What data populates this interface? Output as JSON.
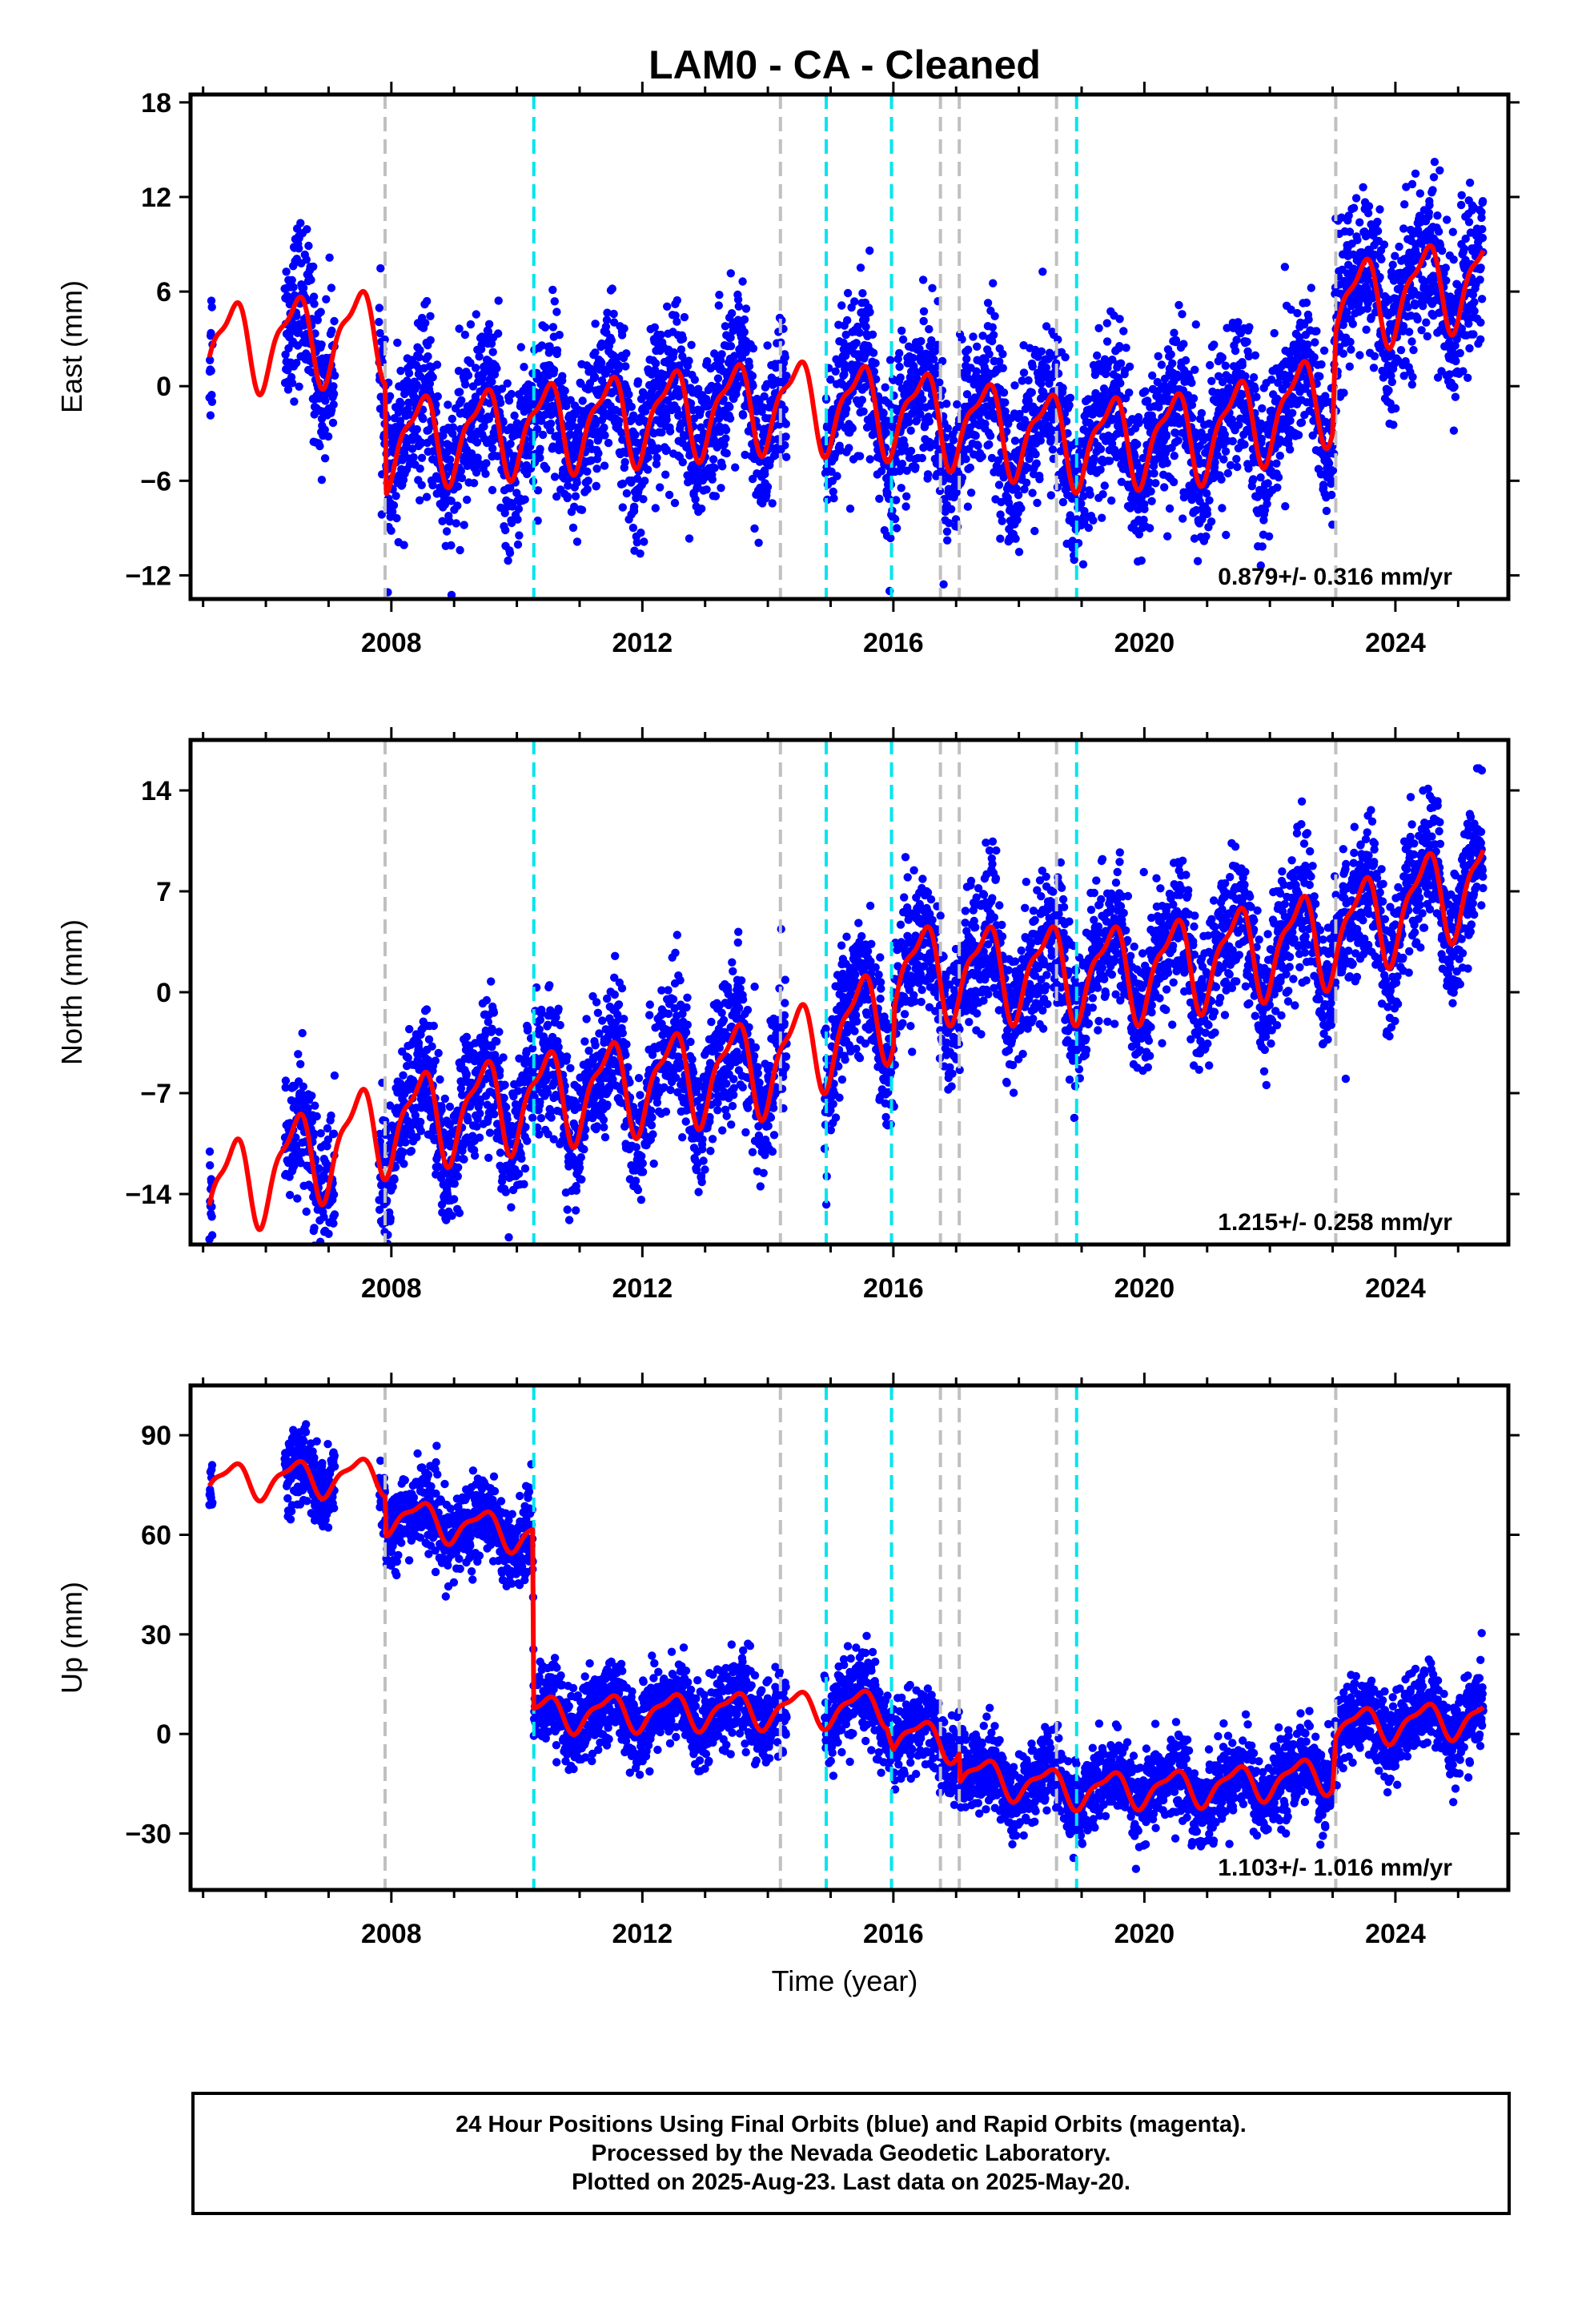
{
  "title": "LAM0  - CA - Cleaned",
  "x_axis_title": "Time (year)",
  "colors": {
    "data": "#0000ff",
    "model": "#ff0000",
    "steps_equipment": "#c0c0c0",
    "steps_earthquake": "#00e5ee"
  },
  "footer": {
    "line1": "24 Hour Positions Using Final Orbits (blue) and Rapid Orbits (magenta).",
    "line2": "Processed by the Nevada Geodetic Laboratory.",
    "line3": "Plotted on 2025-Aug-23. Last data on 2025-May-20."
  },
  "chart_data": [
    {
      "type": "scatter",
      "component": "east",
      "ylabel": "East (mm)",
      "xlabel": "",
      "xlim": [
        2004.8,
        2025.8
      ],
      "ylim": [
        -13.5,
        18.5
      ],
      "yticks": [
        18,
        12,
        6,
        0,
        -6,
        -12
      ],
      "ytick_labels": [
        "18",
        "12",
        "6",
        "0",
        "−6",
        "−12"
      ],
      "xticks": [
        2008,
        2012,
        2016,
        2020,
        2024
      ],
      "xtick_labels": [
        "2008",
        "2012",
        "2016",
        "2020",
        "2024"
      ],
      "rate_label": "0.879+/- 0.316 mm/yr",
      "data_segments": [
        [
          2005.1,
          2005.15
        ],
        [
          2006.3,
          2007.1
        ],
        [
          2007.8,
          2014.3
        ],
        [
          2014.9,
          2025.4
        ]
      ],
      "trend_per_year": 0.879,
      "model_breaks": [
        [
          2007.9,
          -7
        ],
        [
          2014.2,
          2
        ],
        [
          2023.05,
          6
        ]
      ],
      "model_trend_knots": [
        [
          2005.1,
          2.5
        ],
        [
          2007.9,
          3.5
        ],
        [
          2007.92,
          -3.5
        ],
        [
          2014.2,
          -1
        ],
        [
          2016.0,
          -1.5
        ],
        [
          2019.0,
          -3.5
        ],
        [
          2021.0,
          -3
        ],
        [
          2023.0,
          -0.5
        ],
        [
          2023.05,
          5
        ],
        [
          2025.4,
          7
        ]
      ],
      "season_amplitude": 2.6,
      "noise": 2.5
    },
    {
      "type": "scatter",
      "component": "north",
      "ylabel": "North (mm)",
      "xlabel": "",
      "xlim": [
        2004.8,
        2025.8
      ],
      "ylim": [
        -17.5,
        17.5
      ],
      "yticks": [
        14,
        7,
        0,
        -7,
        -14
      ],
      "ytick_labels": [
        "14",
        "7",
        "0",
        "−7",
        "−14"
      ],
      "xticks": [
        2008,
        2012,
        2016,
        2020,
        2024
      ],
      "xtick_labels": [
        "2008",
        "2012",
        "2016",
        "2020",
        "2024"
      ],
      "rate_label": "1.215+/- 0.258 mm/yr",
      "data_segments": [
        [
          2005.1,
          2005.15
        ],
        [
          2006.3,
          2007.1
        ],
        [
          2007.8,
          2014.3
        ],
        [
          2014.9,
          2025.4
        ]
      ],
      "model_trend_knots": [
        [
          2005.1,
          -14
        ],
        [
          2008.0,
          -9
        ],
        [
          2010.0,
          -7.5
        ],
        [
          2014.0,
          -5
        ],
        [
          2016.0,
          -1
        ],
        [
          2016.02,
          1.5
        ],
        [
          2020.0,
          1.5
        ],
        [
          2023.0,
          4
        ],
        [
          2025.4,
          8
        ]
      ],
      "season_amplitude": 3.0,
      "noise": 2.3
    },
    {
      "type": "scatter",
      "component": "up",
      "ylabel": "Up (mm)",
      "xlabel": "Time (year)",
      "xlim": [
        2004.8,
        2025.8
      ],
      "ylim": [
        -47,
        105
      ],
      "yticks": [
        90,
        60,
        30,
        0,
        -30
      ],
      "ytick_labels": [
        "90",
        "60",
        "30",
        "0",
        "−30"
      ],
      "xticks": [
        2008,
        2012,
        2016,
        2020,
        2024
      ],
      "xtick_labels": [
        "2008",
        "2012",
        "2016",
        "2020",
        "2024"
      ],
      "rate_label": "1.103+/- 1.016 mm/yr",
      "data_segments": [
        [
          2005.1,
          2005.15
        ],
        [
          2006.3,
          2007.1
        ],
        [
          2007.8,
          2014.3
        ],
        [
          2014.9,
          2025.4
        ]
      ],
      "model_trend_knots": [
        [
          2005.1,
          76
        ],
        [
          2007.9,
          78
        ],
        [
          2007.92,
          66
        ],
        [
          2010.25,
          60
        ],
        [
          2010.27,
          6
        ],
        [
          2015.9,
          8
        ],
        [
          2016.0,
          0
        ],
        [
          2017.05,
          -3
        ],
        [
          2017.07,
          -12
        ],
        [
          2019.0,
          -17
        ],
        [
          2021.0,
          -16
        ],
        [
          2023.0,
          -12
        ],
        [
          2023.05,
          2
        ],
        [
          2025.4,
          5
        ]
      ],
      "season_amplitude": 5,
      "noise": 6
    }
  ],
  "step_lines": {
    "equipment": [
      2007.9,
      2014.2,
      2016.75,
      2017.05,
      2018.6,
      2023.05
    ],
    "earthquake": [
      2010.27,
      2014.93,
      2015.97,
      2018.92
    ]
  }
}
